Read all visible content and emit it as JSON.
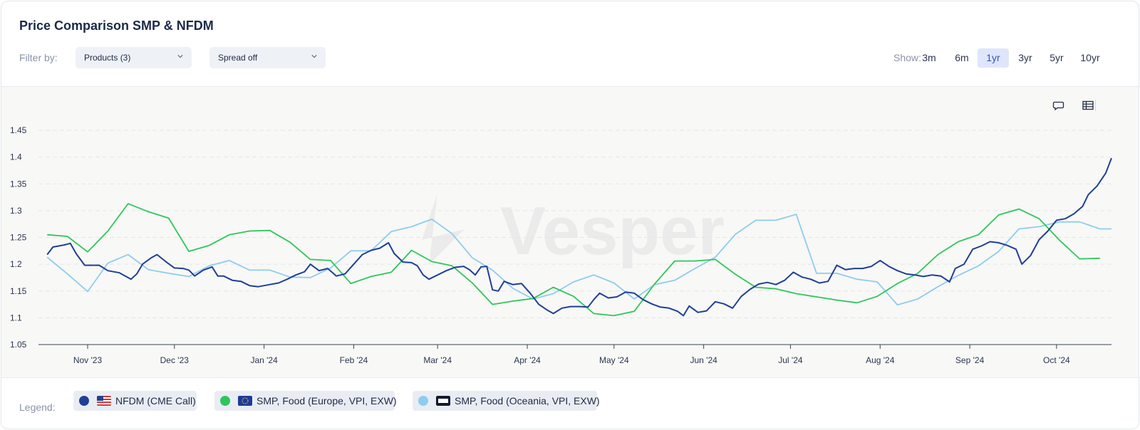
{
  "header": {
    "title": "Price Comparison SMP & NFDM",
    "filter_label": "Filter by:",
    "products_dropdown": "Products (3)",
    "spread_dropdown": "Spread off",
    "show_label": "Show:",
    "ranges": [
      "3m",
      "6m",
      "1yr",
      "3yr",
      "5yr",
      "10yr"
    ],
    "active_range": "1yr"
  },
  "toolbar": {
    "comment_icon": "speech-bubble-icon",
    "table_icon": "table-icon"
  },
  "watermark": "Vesper",
  "legend": {
    "label": "Legend:",
    "items": [
      {
        "name": "NFDM (CME Call)",
        "color": "#1f3f98",
        "flag": "us-flag-icon"
      },
      {
        "name": "SMP, Food (Europe, VPI, EXW)",
        "color": "#2fc65b",
        "flag": "eu-flag-icon"
      },
      {
        "name": "SMP, Food (Oceania, VPI, EXW)",
        "color": "#8ccdee",
        "flag": "oce-badge-icon"
      }
    ]
  },
  "chart_data": {
    "type": "line",
    "ylim": [
      1.05,
      1.45
    ],
    "yticks": [
      "1.45",
      "1.4",
      "1.35",
      "1.3",
      "1.25",
      "1.2",
      "1.15",
      "1.1",
      "1.05"
    ],
    "xlim": [
      "2023-10-15",
      "2024-10-20"
    ],
    "xticks": [
      {
        "label": "Nov '23",
        "date": "2023-11-01"
      },
      {
        "label": "Dec '23",
        "date": "2023-12-01"
      },
      {
        "label": "Jan '24",
        "date": "2024-01-01"
      },
      {
        "label": "Feb '24",
        "date": "2024-02-01"
      },
      {
        "label": "Mar '24",
        "date": "2024-03-01"
      },
      {
        "label": "Apr '24",
        "date": "2024-04-01"
      },
      {
        "label": "May '24",
        "date": "2024-05-01"
      },
      {
        "label": "Jun '24",
        "date": "2024-06-01"
      },
      {
        "label": "Jul '24",
        "date": "2024-07-01"
      },
      {
        "label": "Aug '24",
        "date": "2024-08-01"
      },
      {
        "label": "Sep '24",
        "date": "2024-09-01"
      },
      {
        "label": "Oct '24",
        "date": "2024-10-01"
      }
    ],
    "grid": true,
    "series": [
      {
        "name": "NFDM (CME Call)",
        "color": "#1f3f98",
        "points": [
          [
            "2023-10-18",
            1.218
          ],
          [
            "2023-10-20",
            1.232
          ],
          [
            "2023-10-24",
            1.236
          ],
          [
            "2023-10-26",
            1.239
          ],
          [
            "2023-10-28",
            1.22
          ],
          [
            "2023-10-31",
            1.198
          ],
          [
            "2023-11-05",
            1.198
          ],
          [
            "2023-11-08",
            1.188
          ],
          [
            "2023-11-12",
            1.184
          ],
          [
            "2023-11-14",
            1.178
          ],
          [
            "2023-11-16",
            1.172
          ],
          [
            "2023-11-18",
            1.182
          ],
          [
            "2023-11-20",
            1.2
          ],
          [
            "2023-11-23",
            1.212
          ],
          [
            "2023-11-25",
            1.218
          ],
          [
            "2023-11-28",
            1.205
          ],
          [
            "2023-12-01",
            1.193
          ],
          [
            "2023-12-04",
            1.192
          ],
          [
            "2023-12-06",
            1.189
          ],
          [
            "2023-12-08",
            1.178
          ],
          [
            "2023-12-11",
            1.189
          ],
          [
            "2023-12-14",
            1.195
          ],
          [
            "2023-12-16",
            1.178
          ],
          [
            "2023-12-18",
            1.178
          ],
          [
            "2023-12-21",
            1.17
          ],
          [
            "2023-12-24",
            1.168
          ],
          [
            "2023-12-27",
            1.16
          ],
          [
            "2023-12-30",
            1.158
          ],
          [
            "2024-01-03",
            1.162
          ],
          [
            "2024-01-06",
            1.165
          ],
          [
            "2024-01-09",
            1.172
          ],
          [
            "2024-01-12",
            1.18
          ],
          [
            "2024-01-15",
            1.186
          ],
          [
            "2024-01-17",
            1.2
          ],
          [
            "2024-01-20",
            1.188
          ],
          [
            "2024-01-23",
            1.192
          ],
          [
            "2024-01-26",
            1.178
          ],
          [
            "2024-01-29",
            1.182
          ],
          [
            "2024-02-01",
            1.2
          ],
          [
            "2024-02-04",
            1.218
          ],
          [
            "2024-02-07",
            1.226
          ],
          [
            "2024-02-10",
            1.23
          ],
          [
            "2024-02-13",
            1.24
          ],
          [
            "2024-02-15",
            1.22
          ],
          [
            "2024-02-18",
            1.204
          ],
          [
            "2024-02-21",
            1.203
          ],
          [
            "2024-02-23",
            1.197
          ],
          [
            "2024-02-25",
            1.18
          ],
          [
            "2024-02-27",
            1.172
          ],
          [
            "2024-03-01",
            1.18
          ],
          [
            "2024-03-04",
            1.188
          ],
          [
            "2024-03-07",
            1.194
          ],
          [
            "2024-03-10",
            1.196
          ],
          [
            "2024-03-12",
            1.19
          ],
          [
            "2024-03-14",
            1.18
          ],
          [
            "2024-03-16",
            1.195
          ],
          [
            "2024-03-18",
            1.196
          ],
          [
            "2024-03-20",
            1.152
          ],
          [
            "2024-03-22",
            1.15
          ],
          [
            "2024-03-24",
            1.168
          ],
          [
            "2024-03-27",
            1.162
          ],
          [
            "2024-03-30",
            1.164
          ],
          [
            "2024-04-02",
            1.146
          ],
          [
            "2024-04-05",
            1.125
          ],
          [
            "2024-04-08",
            1.114
          ],
          [
            "2024-04-10",
            1.108
          ],
          [
            "2024-04-13",
            1.118
          ],
          [
            "2024-04-16",
            1.121
          ],
          [
            "2024-04-19",
            1.121
          ],
          [
            "2024-04-22",
            1.12
          ],
          [
            "2024-04-24",
            1.134
          ],
          [
            "2024-04-26",
            1.146
          ],
          [
            "2024-04-29",
            1.137
          ],
          [
            "2024-05-02",
            1.139
          ],
          [
            "2024-05-05",
            1.148
          ],
          [
            "2024-05-08",
            1.146
          ],
          [
            "2024-05-11",
            1.134
          ],
          [
            "2024-05-14",
            1.126
          ],
          [
            "2024-05-17",
            1.12
          ],
          [
            "2024-05-20",
            1.118
          ],
          [
            "2024-05-23",
            1.112
          ],
          [
            "2024-05-25",
            1.104
          ],
          [
            "2024-05-27",
            1.122
          ],
          [
            "2024-05-30",
            1.11
          ],
          [
            "2024-06-02",
            1.113
          ],
          [
            "2024-06-05",
            1.13
          ],
          [
            "2024-06-08",
            1.126
          ],
          [
            "2024-06-11",
            1.118
          ],
          [
            "2024-06-14",
            1.14
          ],
          [
            "2024-06-17",
            1.153
          ],
          [
            "2024-06-20",
            1.163
          ],
          [
            "2024-06-23",
            1.166
          ],
          [
            "2024-06-26",
            1.162
          ],
          [
            "2024-06-29",
            1.17
          ],
          [
            "2024-07-02",
            1.185
          ],
          [
            "2024-07-05",
            1.176
          ],
          [
            "2024-07-08",
            1.172
          ],
          [
            "2024-07-11",
            1.165
          ],
          [
            "2024-07-14",
            1.168
          ],
          [
            "2024-07-17",
            1.198
          ],
          [
            "2024-07-20",
            1.19
          ],
          [
            "2024-07-23",
            1.192
          ],
          [
            "2024-07-26",
            1.192
          ],
          [
            "2024-07-29",
            1.196
          ],
          [
            "2024-08-01",
            1.207
          ],
          [
            "2024-08-04",
            1.196
          ],
          [
            "2024-08-07",
            1.188
          ],
          [
            "2024-08-10",
            1.182
          ],
          [
            "2024-08-13",
            1.18
          ],
          [
            "2024-08-16",
            1.177
          ],
          [
            "2024-08-19",
            1.18
          ],
          [
            "2024-08-22",
            1.178
          ],
          [
            "2024-08-25",
            1.167
          ],
          [
            "2024-08-27",
            1.192
          ],
          [
            "2024-08-30",
            1.2
          ],
          [
            "2024-09-02",
            1.228
          ],
          [
            "2024-09-05",
            1.234
          ],
          [
            "2024-09-08",
            1.242
          ],
          [
            "2024-09-11",
            1.24
          ],
          [
            "2024-09-14",
            1.235
          ],
          [
            "2024-09-17",
            1.228
          ],
          [
            "2024-09-19",
            1.2
          ],
          [
            "2024-09-22",
            1.216
          ],
          [
            "2024-09-25",
            1.246
          ],
          [
            "2024-09-28",
            1.262
          ],
          [
            "2024-10-01",
            1.282
          ],
          [
            "2024-10-04",
            1.285
          ],
          [
            "2024-10-07",
            1.294
          ],
          [
            "2024-10-10",
            1.308
          ],
          [
            "2024-10-12",
            1.33
          ],
          [
            "2024-10-15",
            1.346
          ],
          [
            "2024-10-18",
            1.37
          ],
          [
            "2024-10-20",
            1.398
          ]
        ]
      },
      {
        "name": "SMP, Food (Europe, VPI, EXW)",
        "color": "#2fc65b",
        "points": [
          [
            "2023-10-18",
            1.255
          ],
          [
            "2023-10-25",
            1.252
          ],
          [
            "2023-11-01",
            1.223
          ],
          [
            "2023-11-08",
            1.262
          ],
          [
            "2023-11-15",
            1.313
          ],
          [
            "2023-11-22",
            1.298
          ],
          [
            "2023-11-29",
            1.286
          ],
          [
            "2023-12-06",
            1.224
          ],
          [
            "2023-12-13",
            1.235
          ],
          [
            "2023-12-20",
            1.255
          ],
          [
            "2023-12-27",
            1.262
          ],
          [
            "2024-01-03",
            1.263
          ],
          [
            "2024-01-10",
            1.241
          ],
          [
            "2024-01-17",
            1.209
          ],
          [
            "2024-01-24",
            1.207
          ],
          [
            "2024-01-31",
            1.164
          ],
          [
            "2024-02-07",
            1.177
          ],
          [
            "2024-02-14",
            1.185
          ],
          [
            "2024-02-21",
            1.226
          ],
          [
            "2024-02-28",
            1.205
          ],
          [
            "2024-03-06",
            1.197
          ],
          [
            "2024-03-13",
            1.165
          ],
          [
            "2024-03-20",
            1.125
          ],
          [
            "2024-03-27",
            1.131
          ],
          [
            "2024-04-03",
            1.136
          ],
          [
            "2024-04-10",
            1.157
          ],
          [
            "2024-04-17",
            1.14
          ],
          [
            "2024-04-24",
            1.108
          ],
          [
            "2024-05-01",
            1.104
          ],
          [
            "2024-05-08",
            1.112
          ],
          [
            "2024-05-15",
            1.163
          ],
          [
            "2024-05-22",
            1.206
          ],
          [
            "2024-05-29",
            1.206
          ],
          [
            "2024-06-05",
            1.209
          ],
          [
            "2024-06-12",
            1.181
          ],
          [
            "2024-06-19",
            1.157
          ],
          [
            "2024-06-26",
            1.154
          ],
          [
            "2024-07-03",
            1.145
          ],
          [
            "2024-07-10",
            1.139
          ],
          [
            "2024-07-17",
            1.133
          ],
          [
            "2024-07-24",
            1.128
          ],
          [
            "2024-07-31",
            1.14
          ],
          [
            "2024-08-07",
            1.164
          ],
          [
            "2024-08-14",
            1.183
          ],
          [
            "2024-08-21",
            1.218
          ],
          [
            "2024-08-28",
            1.242
          ],
          [
            "2024-09-04",
            1.255
          ],
          [
            "2024-09-11",
            1.292
          ],
          [
            "2024-09-18",
            1.303
          ],
          [
            "2024-09-25",
            1.285
          ],
          [
            "2024-10-02",
            1.245
          ],
          [
            "2024-10-09",
            1.21
          ],
          [
            "2024-10-16",
            1.211
          ]
        ]
      },
      {
        "name": "SMP, Food (Oceania, VPI, EXW)",
        "color": "#8ccdee",
        "points": [
          [
            "2023-10-18",
            1.213
          ],
          [
            "2023-10-25",
            1.182
          ],
          [
            "2023-11-01",
            1.149
          ],
          [
            "2023-11-08",
            1.202
          ],
          [
            "2023-11-15",
            1.218
          ],
          [
            "2023-11-22",
            1.19
          ],
          [
            "2023-11-29",
            1.183
          ],
          [
            "2023-12-06",
            1.177
          ],
          [
            "2023-12-13",
            1.197
          ],
          [
            "2023-12-20",
            1.207
          ],
          [
            "2023-12-27",
            1.189
          ],
          [
            "2024-01-03",
            1.189
          ],
          [
            "2024-01-10",
            1.176
          ],
          [
            "2024-01-17",
            1.175
          ],
          [
            "2024-01-24",
            1.193
          ],
          [
            "2024-01-31",
            1.225
          ],
          [
            "2024-02-07",
            1.225
          ],
          [
            "2024-02-14",
            1.261
          ],
          [
            "2024-02-21",
            1.27
          ],
          [
            "2024-02-28",
            1.284
          ],
          [
            "2024-03-06",
            1.257
          ],
          [
            "2024-03-13",
            1.212
          ],
          [
            "2024-03-20",
            1.189
          ],
          [
            "2024-03-27",
            1.155
          ],
          [
            "2024-04-03",
            1.135
          ],
          [
            "2024-04-10",
            1.145
          ],
          [
            "2024-04-17",
            1.167
          ],
          [
            "2024-04-24",
            1.18
          ],
          [
            "2024-05-01",
            1.165
          ],
          [
            "2024-05-08",
            1.135
          ],
          [
            "2024-05-15",
            1.162
          ],
          [
            "2024-05-22",
            1.17
          ],
          [
            "2024-05-29",
            1.192
          ],
          [
            "2024-06-05",
            1.213
          ],
          [
            "2024-06-12",
            1.256
          ],
          [
            "2024-06-19",
            1.282
          ],
          [
            "2024-06-26",
            1.282
          ],
          [
            "2024-07-03",
            1.293
          ],
          [
            "2024-07-10",
            1.183
          ],
          [
            "2024-07-17",
            1.183
          ],
          [
            "2024-07-24",
            1.172
          ],
          [
            "2024-07-31",
            1.167
          ],
          [
            "2024-08-07",
            1.124
          ],
          [
            "2024-08-14",
            1.135
          ],
          [
            "2024-08-21",
            1.158
          ],
          [
            "2024-08-28",
            1.179
          ],
          [
            "2024-09-04",
            1.197
          ],
          [
            "2024-09-11",
            1.224
          ],
          [
            "2024-09-18",
            1.266
          ],
          [
            "2024-09-25",
            1.27
          ],
          [
            "2024-10-02",
            1.279
          ],
          [
            "2024-10-09",
            1.279
          ],
          [
            "2024-10-16",
            1.266
          ],
          [
            "2024-10-20",
            1.266
          ]
        ]
      }
    ]
  }
}
